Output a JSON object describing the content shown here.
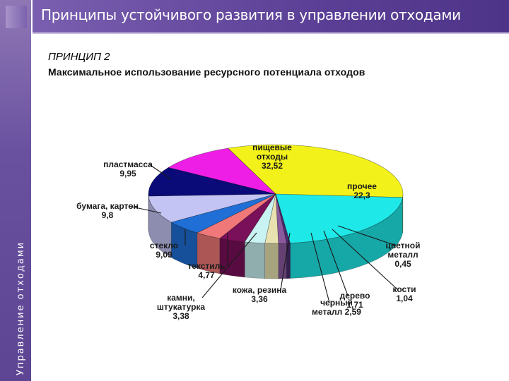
{
  "side_caption": "Управление отходами",
  "header": {
    "title": "Принципы устойчивого развития в управлении отходами"
  },
  "principle": {
    "title": "ПРИНЦИП 2",
    "description": "Максимальное использование ресурсного потенциала отходов"
  },
  "chart_data": {
    "type": "pie",
    "title": "",
    "slices": [
      {
        "name": "пищевые отходы",
        "value": 32.52,
        "label_lines": [
          "пищевые",
          "отходы",
          "32,52"
        ],
        "color": "#f2f21a"
      },
      {
        "name": "прочее",
        "value": 22.3,
        "label_lines": [
          "прочее",
          "22,3"
        ],
        "color": "#1fe8e8"
      },
      {
        "name": "цветной металл",
        "value": 0.45,
        "label_lines": [
          "цветной",
          "металл",
          "0,45"
        ],
        "color": "#4b2a6e"
      },
      {
        "name": "кости",
        "value": 1.04,
        "label_lines": [
          "кости",
          "1,04"
        ],
        "color": "#8b5a9e"
      },
      {
        "name": "дерево",
        "value": 1.71,
        "label_lines": [
          "дерево",
          "1,71"
        ],
        "color": "#e8e2b0"
      },
      {
        "name": "черный металл",
        "value": 2.59,
        "label_lines": [
          "черный",
          "металл 2,59"
        ],
        "color": "#c9f2f2"
      },
      {
        "name": "кожа, резина",
        "value": 3.36,
        "label_lines": [
          "кожа, резина",
          "3,36"
        ],
        "color": "#7a0f5a"
      },
      {
        "name": "камни, штукатурка",
        "value": 3.38,
        "label_lines": [
          "камни,",
          "штукатурка",
          "3,38"
        ],
        "color": "#f07878"
      },
      {
        "name": "текстиль",
        "value": 4.77,
        "label_lines": [
          "текстиль",
          "4,77"
        ],
        "color": "#1f6fd6"
      },
      {
        "name": "стекло",
        "value": 9.09,
        "label_lines": [
          "стекло",
          "9,09"
        ],
        "color": "#c4c4f4"
      },
      {
        "name": "бумага, картон",
        "value": 9.8,
        "label_lines": [
          "бумага, картон",
          "9,8"
        ],
        "color": "#0a0a78"
      },
      {
        "name": "пластмасса",
        "value": 9.95,
        "label_lines": [
          "пластмасса",
          "9,95"
        ],
        "color": "#ee1ee6"
      }
    ]
  }
}
